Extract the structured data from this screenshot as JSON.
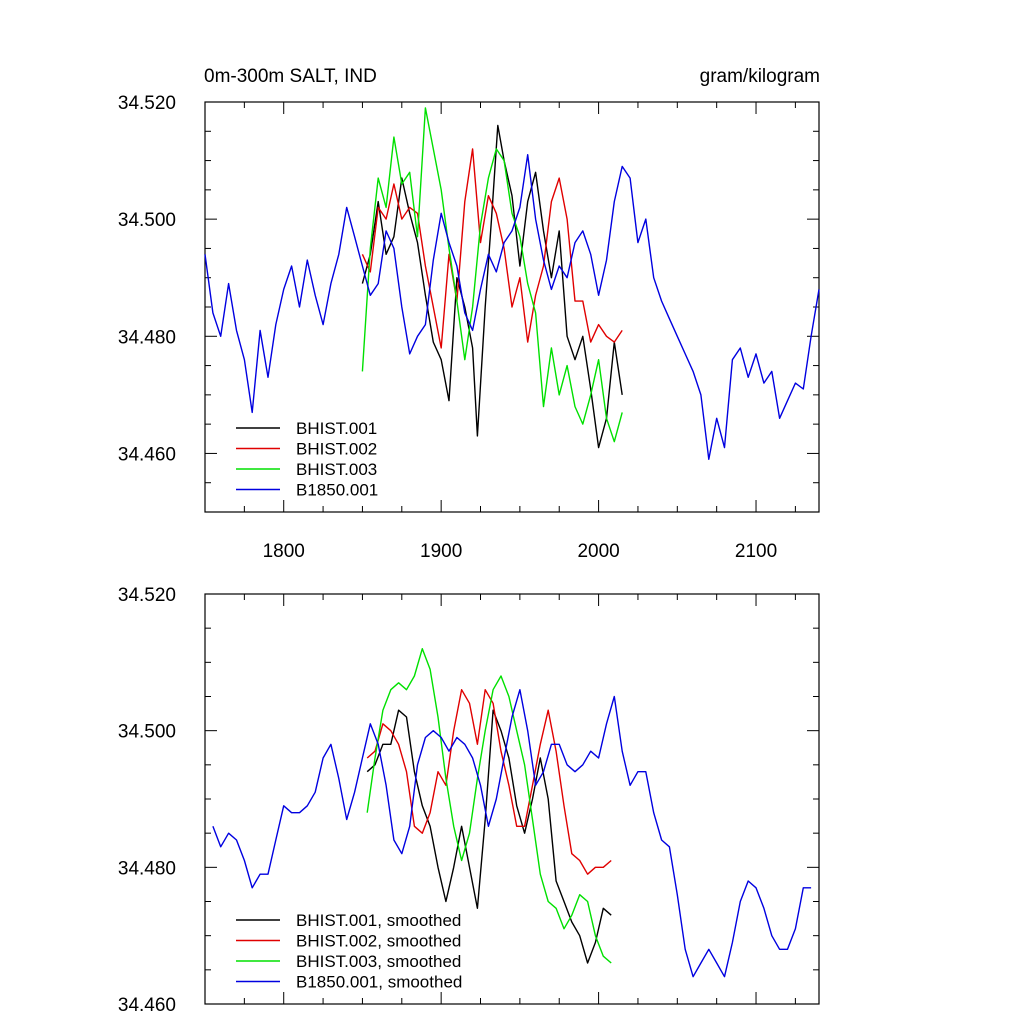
{
  "colors": {
    "BHIST.001": "#000000",
    "BHIST.002": "#e00000",
    "BHIST.003": "#00e000",
    "B1850.001": "#0000e0"
  },
  "chart_data": [
    {
      "type": "line",
      "title_left": "0m-300m SALT, IND",
      "title_right": "gram/kilogram",
      "xlim": [
        1750,
        2140
      ],
      "ylim": [
        34.45,
        34.52
      ],
      "xticks": [
        1800,
        1900,
        2000,
        2100
      ],
      "xtick_labels": [
        "1800",
        "1900",
        "2000",
        "2100"
      ],
      "yticks": [
        34.46,
        34.48,
        34.5,
        34.52
      ],
      "ytick_labels": [
        "34.460",
        "34.480",
        "34.500",
        "34.520"
      ],
      "legend_position": "bottom-left",
      "series": [
        {
          "name": "BHIST.001",
          "x": [
            1850,
            1855,
            1860,
            1865,
            1870,
            1875,
            1880,
            1885,
            1890,
            1895,
            1900,
            1905,
            1910,
            1915,
            1920,
            1923,
            1928,
            1932,
            1936,
            1940,
            1945,
            1950,
            1955,
            1960,
            1965,
            1970,
            1975,
            1980,
            1985,
            1990,
            1995,
            2000,
            2005,
            2010,
            2015
          ],
          "y": [
            34.489,
            34.494,
            34.503,
            34.494,
            34.497,
            34.507,
            34.501,
            34.496,
            34.487,
            34.479,
            34.476,
            34.469,
            34.49,
            34.485,
            34.478,
            34.463,
            34.485,
            34.5,
            34.516,
            34.51,
            34.504,
            34.492,
            34.503,
            34.508,
            34.498,
            34.49,
            34.498,
            34.48,
            34.476,
            34.48,
            34.471,
            34.461,
            34.466,
            34.479,
            34.47
          ]
        },
        {
          "name": "BHIST.002",
          "x": [
            1850,
            1855,
            1860,
            1865,
            1870,
            1875,
            1880,
            1885,
            1890,
            1895,
            1900,
            1905,
            1910,
            1915,
            1920,
            1925,
            1930,
            1935,
            1940,
            1945,
            1950,
            1955,
            1960,
            1965,
            1970,
            1975,
            1980,
            1985,
            1990,
            1995,
            2000,
            2005,
            2010,
            2015
          ],
          "y": [
            34.494,
            34.491,
            34.502,
            34.5,
            34.506,
            34.5,
            34.502,
            34.501,
            34.492,
            34.485,
            34.478,
            34.494,
            34.486,
            34.503,
            34.512,
            34.496,
            34.504,
            34.501,
            34.495,
            34.485,
            34.49,
            34.479,
            34.487,
            34.492,
            34.503,
            34.507,
            34.5,
            34.486,
            34.486,
            34.479,
            34.482,
            34.48,
            34.479,
            34.481
          ]
        },
        {
          "name": "BHIST.003",
          "x": [
            1850,
            1855,
            1860,
            1865,
            1870,
            1875,
            1880,
            1885,
            1890,
            1895,
            1900,
            1905,
            1910,
            1915,
            1920,
            1925,
            1930,
            1935,
            1940,
            1945,
            1950,
            1955,
            1960,
            1965,
            1970,
            1975,
            1980,
            1985,
            1990,
            1995,
            2000,
            2005,
            2010,
            2015
          ],
          "y": [
            34.474,
            34.495,
            34.507,
            34.502,
            34.514,
            34.506,
            34.508,
            34.497,
            34.519,
            34.512,
            34.505,
            34.495,
            34.486,
            34.476,
            34.485,
            34.499,
            34.507,
            34.512,
            34.51,
            34.501,
            34.497,
            34.489,
            34.484,
            34.468,
            34.478,
            34.47,
            34.475,
            34.468,
            34.465,
            34.47,
            34.476,
            34.466,
            34.462,
            34.467
          ]
        },
        {
          "name": "B1850.001",
          "x": [
            1750,
            1755,
            1760,
            1765,
            1770,
            1775,
            1780,
            1785,
            1790,
            1795,
            1800,
            1805,
            1810,
            1815,
            1820,
            1825,
            1830,
            1835,
            1840,
            1845,
            1850,
            1855,
            1860,
            1865,
            1870,
            1875,
            1880,
            1885,
            1890,
            1895,
            1900,
            1905,
            1910,
            1915,
            1920,
            1925,
            1930,
            1935,
            1940,
            1945,
            1950,
            1955,
            1960,
            1965,
            1970,
            1975,
            1980,
            1985,
            1990,
            1995,
            2000,
            2005,
            2010,
            2015,
            2020,
            2025,
            2030,
            2035,
            2040,
            2045,
            2050,
            2055,
            2060,
            2065,
            2070,
            2075,
            2080,
            2085,
            2090,
            2095,
            2100,
            2105,
            2110,
            2115,
            2120,
            2125,
            2130,
            2135,
            2140
          ],
          "y": [
            34.494,
            34.484,
            34.48,
            34.489,
            34.481,
            34.476,
            34.467,
            34.481,
            34.473,
            34.482,
            34.488,
            34.492,
            34.485,
            34.493,
            34.487,
            34.482,
            34.489,
            34.494,
            34.502,
            34.497,
            34.492,
            34.487,
            34.489,
            34.498,
            34.495,
            34.485,
            34.477,
            34.48,
            34.482,
            34.493,
            34.501,
            34.496,
            34.492,
            34.484,
            34.481,
            34.488,
            34.494,
            34.491,
            34.496,
            34.498,
            34.502,
            34.511,
            34.5,
            34.493,
            34.488,
            34.492,
            34.49,
            34.496,
            34.498,
            34.494,
            34.487,
            34.493,
            34.503,
            34.509,
            34.507,
            34.496,
            34.5,
            34.49,
            34.486,
            34.483,
            34.48,
            34.477,
            34.474,
            34.47,
            34.459,
            34.466,
            34.461,
            34.476,
            34.478,
            34.473,
            34.477,
            34.472,
            34.474,
            34.466,
            34.469,
            34.472,
            34.471,
            34.48,
            34.488
          ]
        }
      ]
    },
    {
      "type": "line",
      "xlim": [
        1750,
        2140
      ],
      "ylim": [
        34.46,
        34.52
      ],
      "xticks": [
        1800,
        1900,
        2000,
        2100
      ],
      "yticks": [
        34.46,
        34.48,
        34.5,
        34.52
      ],
      "ytick_labels": [
        "34.460",
        "34.480",
        "34.500",
        "34.520"
      ],
      "legend_position": "bottom-left",
      "series": [
        {
          "name": "BHIST.001, smoothed",
          "x": [
            1853,
            1858,
            1863,
            1868,
            1873,
            1878,
            1883,
            1888,
            1893,
            1898,
            1903,
            1908,
            1913,
            1918,
            1923,
            1928,
            1933,
            1938,
            1943,
            1948,
            1953,
            1958,
            1963,
            1968,
            1973,
            1978,
            1983,
            1988,
            1993,
            1998,
            2003,
            2008
          ],
          "y": [
            34.494,
            34.495,
            34.498,
            34.498,
            34.503,
            34.502,
            34.494,
            34.489,
            34.486,
            34.48,
            34.475,
            34.48,
            34.486,
            34.48,
            34.474,
            34.487,
            34.503,
            34.5,
            34.496,
            34.489,
            34.485,
            34.49,
            34.496,
            34.49,
            34.478,
            34.475,
            34.472,
            34.47,
            34.466,
            34.469,
            34.474,
            34.473
          ]
        },
        {
          "name": "BHIST.002, smoothed",
          "x": [
            1853,
            1858,
            1863,
            1868,
            1873,
            1878,
            1883,
            1888,
            1893,
            1898,
            1903,
            1908,
            1913,
            1918,
            1923,
            1928,
            1933,
            1938,
            1943,
            1948,
            1953,
            1958,
            1963,
            1968,
            1973,
            1978,
            1983,
            1988,
            1993,
            1998,
            2003,
            2008
          ],
          "y": [
            34.496,
            34.497,
            34.501,
            34.5,
            34.498,
            34.494,
            34.486,
            34.485,
            34.488,
            34.494,
            34.492,
            34.5,
            34.506,
            34.504,
            34.498,
            34.506,
            34.504,
            34.497,
            34.492,
            34.486,
            34.486,
            34.492,
            34.498,
            34.503,
            34.497,
            34.489,
            34.482,
            34.481,
            34.479,
            34.48,
            34.48,
            34.481
          ]
        },
        {
          "name": "BHIST.003, smoothed",
          "x": [
            1853,
            1858,
            1863,
            1868,
            1873,
            1878,
            1883,
            1888,
            1893,
            1898,
            1903,
            1908,
            1913,
            1918,
            1923,
            1928,
            1933,
            1938,
            1943,
            1948,
            1953,
            1958,
            1963,
            1968,
            1973,
            1978,
            1983,
            1988,
            1993,
            1998,
            2003,
            2008
          ],
          "y": [
            34.488,
            34.496,
            34.503,
            34.506,
            34.507,
            34.506,
            34.508,
            34.512,
            34.509,
            34.502,
            34.493,
            34.486,
            34.481,
            34.485,
            34.493,
            34.5,
            34.506,
            34.508,
            34.505,
            34.5,
            34.495,
            34.487,
            34.479,
            34.475,
            34.474,
            34.471,
            34.473,
            34.476,
            34.475,
            34.47,
            34.467,
            34.466
          ]
        },
        {
          "name": "B1850.001, smoothed",
          "x": [
            1755,
            1760,
            1765,
            1770,
            1775,
            1780,
            1785,
            1790,
            1795,
            1800,
            1805,
            1810,
            1815,
            1820,
            1825,
            1830,
            1835,
            1840,
            1845,
            1850,
            1855,
            1860,
            1865,
            1870,
            1875,
            1880,
            1885,
            1890,
            1895,
            1900,
            1905,
            1910,
            1915,
            1920,
            1925,
            1930,
            1935,
            1940,
            1945,
            1950,
            1955,
            1960,
            1965,
            1970,
            1975,
            1980,
            1985,
            1990,
            1995,
            2000,
            2005,
            2010,
            2015,
            2020,
            2025,
            2030,
            2035,
            2040,
            2045,
            2050,
            2055,
            2060,
            2065,
            2070,
            2075,
            2080,
            2085,
            2090,
            2095,
            2100,
            2105,
            2110,
            2115,
            2120,
            2125,
            2130,
            2135
          ],
          "y": [
            34.486,
            34.483,
            34.485,
            34.484,
            34.481,
            34.477,
            34.479,
            34.479,
            34.484,
            34.489,
            34.488,
            34.488,
            34.489,
            34.491,
            34.496,
            34.498,
            34.493,
            34.487,
            34.491,
            34.496,
            34.501,
            34.498,
            34.492,
            34.484,
            34.482,
            34.486,
            34.495,
            34.499,
            34.5,
            34.499,
            34.497,
            34.499,
            34.498,
            34.496,
            34.492,
            34.486,
            34.49,
            34.496,
            34.502,
            34.506,
            34.5,
            34.492,
            34.494,
            34.498,
            34.498,
            34.495,
            34.494,
            34.495,
            34.497,
            34.496,
            34.501,
            34.505,
            34.497,
            34.492,
            34.494,
            34.494,
            34.488,
            34.484,
            34.483,
            34.476,
            34.468,
            34.464,
            34.466,
            34.468,
            34.466,
            34.464,
            34.469,
            34.475,
            34.478,
            34.477,
            34.474,
            34.47,
            34.468,
            34.468,
            34.471,
            34.477,
            34.477
          ]
        }
      ]
    }
  ]
}
